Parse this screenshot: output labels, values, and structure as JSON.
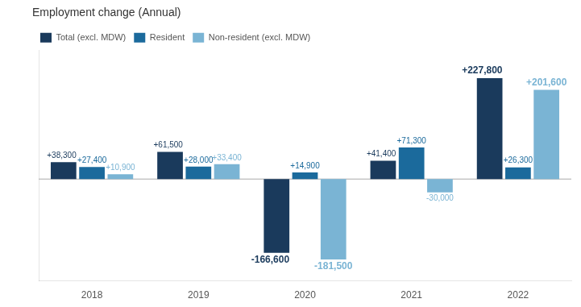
{
  "chart_data": {
    "type": "bar",
    "title": "Employment change (Annual)",
    "categories": [
      "2018",
      "2019",
      "2020",
      "2021",
      "2022"
    ],
    "series": [
      {
        "name": "Total (excl. MDW)",
        "color": "#1a3a5c",
        "values": [
          38300,
          61500,
          -166600,
          41400,
          227800
        ],
        "value_labels": [
          "+38,300",
          "+61,500",
          "-166,600",
          "+41,400",
          "+227,800"
        ]
      },
      {
        "name": "Resident",
        "color": "#1b6a9c",
        "values": [
          27400,
          28000,
          14900,
          71300,
          26300
        ],
        "value_labels": [
          "+27,400",
          "+28,000",
          "+14,900",
          "+71,300",
          "+26,300"
        ]
      },
      {
        "name": "Non-resident (excl. MDW)",
        "color": "#7ab4d4",
        "values": [
          10900,
          33400,
          -181500,
          -30000,
          201600
        ],
        "value_labels": [
          "+10,900",
          "+33,400",
          "-181,500",
          "-30,000",
          "+201,600"
        ]
      }
    ],
    "ylim": [
      -230000,
      290000
    ],
    "grid": false,
    "legend": "upper left",
    "data_labels": true,
    "tick_labels": "x"
  }
}
